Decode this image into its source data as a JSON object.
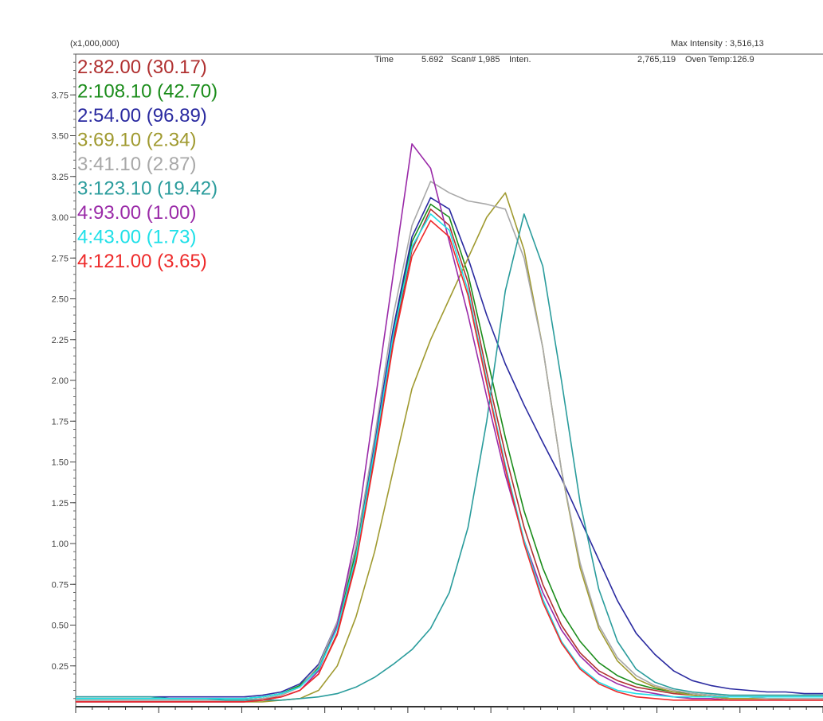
{
  "header": {
    "multiplier": "(x1,000,000)",
    "max_intensity": "Max Intensity : 3,516,13",
    "time_label": "Time",
    "time_value": "5.692",
    "scan_label": "Scan#",
    "scan_value": "1,985",
    "inten_label": "Inten.",
    "inten_value": "2,765,119",
    "oven_temp": "Oven Temp:126.9"
  },
  "chart_data": {
    "type": "line",
    "ylim": [
      0,
      4.0
    ],
    "y_ticks": [
      {
        "v": 0.25,
        "label": "0.25"
      },
      {
        "v": 0.5,
        "label": "0.50"
      },
      {
        "v": 0.75,
        "label": "0.75"
      },
      {
        "v": 1.0,
        "label": "1.00"
      },
      {
        "v": 1.25,
        "label": "1.25"
      },
      {
        "v": 1.5,
        "label": "1.50"
      },
      {
        "v": 1.75,
        "label": "1.75"
      },
      {
        "v": 2.0,
        "label": "2.00"
      },
      {
        "v": 2.25,
        "label": "2.25"
      },
      {
        "v": 2.5,
        "label": "2.50"
      },
      {
        "v": 2.75,
        "label": "2.75"
      },
      {
        "v": 3.0,
        "label": "3.00"
      },
      {
        "v": 3.25,
        "label": "3.25"
      },
      {
        "v": 3.5,
        "label": "3.50"
      },
      {
        "v": 3.75,
        "label": "3.75"
      }
    ],
    "x": [
      0,
      1,
      2,
      3,
      4,
      5,
      6,
      7,
      8,
      9,
      10,
      11,
      12,
      13,
      14,
      15,
      16,
      17,
      18,
      19,
      20,
      21,
      22,
      23,
      24,
      25,
      26,
      27,
      28,
      29,
      30,
      31,
      32,
      33,
      34,
      35,
      36,
      37,
      38,
      39,
      40
    ],
    "series": [
      {
        "name": "2:82.00 (30.17)",
        "color": "#b03030",
        "values": [
          0.04,
          0.04,
          0.04,
          0.04,
          0.04,
          0.04,
          0.04,
          0.04,
          0.04,
          0.04,
          0.05,
          0.06,
          0.1,
          0.2,
          0.45,
          0.9,
          1.55,
          2.25,
          2.8,
          3.05,
          2.95,
          2.6,
          2.05,
          1.55,
          1.1,
          0.75,
          0.5,
          0.33,
          0.22,
          0.16,
          0.12,
          0.1,
          0.08,
          0.07,
          0.06,
          0.05,
          0.05,
          0.05,
          0.05,
          0.05,
          0.05
        ]
      },
      {
        "name": "2:108.10 (42.70)",
        "color": "#1a8c1a",
        "values": [
          0.05,
          0.05,
          0.05,
          0.05,
          0.05,
          0.05,
          0.05,
          0.05,
          0.05,
          0.05,
          0.06,
          0.08,
          0.13,
          0.24,
          0.5,
          0.95,
          1.6,
          2.3,
          2.85,
          3.08,
          3.0,
          2.65,
          2.15,
          1.65,
          1.2,
          0.85,
          0.58,
          0.4,
          0.27,
          0.19,
          0.14,
          0.11,
          0.09,
          0.08,
          0.07,
          0.06,
          0.06,
          0.06,
          0.06,
          0.06,
          0.06
        ]
      },
      {
        "name": "2:54.00 (96.89)",
        "color": "#2a2aa0",
        "values": [
          0.06,
          0.06,
          0.06,
          0.06,
          0.06,
          0.06,
          0.06,
          0.06,
          0.06,
          0.06,
          0.07,
          0.09,
          0.14,
          0.26,
          0.52,
          0.98,
          1.62,
          2.32,
          2.88,
          3.12,
          3.05,
          2.75,
          2.4,
          2.1,
          1.85,
          1.62,
          1.4,
          1.15,
          0.9,
          0.65,
          0.45,
          0.32,
          0.22,
          0.16,
          0.13,
          0.11,
          0.1,
          0.09,
          0.09,
          0.08,
          0.08
        ]
      },
      {
        "name": "3:69.10 (2.34)",
        "color": "#a09a30",
        "values": [
          0.03,
          0.03,
          0.03,
          0.03,
          0.03,
          0.03,
          0.03,
          0.03,
          0.03,
          0.03,
          0.03,
          0.04,
          0.05,
          0.1,
          0.25,
          0.55,
          0.95,
          1.45,
          1.95,
          2.25,
          2.5,
          2.75,
          3.0,
          3.15,
          2.8,
          2.2,
          1.45,
          0.85,
          0.48,
          0.28,
          0.17,
          0.12,
          0.09,
          0.07,
          0.06,
          0.05,
          0.05,
          0.05,
          0.04,
          0.04,
          0.04
        ]
      },
      {
        "name": "3:41.10 (2.87)",
        "color": "#a8a8a8",
        "values": [
          0.04,
          0.04,
          0.04,
          0.04,
          0.04,
          0.04,
          0.04,
          0.04,
          0.04,
          0.04,
          0.05,
          0.07,
          0.12,
          0.25,
          0.52,
          0.98,
          1.65,
          2.4,
          2.95,
          3.22,
          3.15,
          3.1,
          3.08,
          3.05,
          2.75,
          2.2,
          1.45,
          0.88,
          0.5,
          0.3,
          0.19,
          0.13,
          0.1,
          0.08,
          0.07,
          0.06,
          0.06,
          0.05,
          0.05,
          0.05,
          0.05
        ]
      },
      {
        "name": "3:123.10 (19.42)",
        "color": "#2a9c9c",
        "values": [
          0.06,
          0.06,
          0.06,
          0.06,
          0.06,
          0.05,
          0.05,
          0.05,
          0.04,
          0.04,
          0.04,
          0.04,
          0.05,
          0.06,
          0.08,
          0.12,
          0.18,
          0.26,
          0.35,
          0.48,
          0.7,
          1.1,
          1.75,
          2.55,
          3.02,
          2.7,
          2.0,
          1.25,
          0.72,
          0.4,
          0.23,
          0.15,
          0.11,
          0.09,
          0.08,
          0.07,
          0.07,
          0.07,
          0.07,
          0.07,
          0.07
        ]
      },
      {
        "name": "4:93.00 (1.00)",
        "color": "#9a2aa8",
        "values": [
          0.03,
          0.03,
          0.03,
          0.03,
          0.03,
          0.03,
          0.03,
          0.03,
          0.03,
          0.03,
          0.04,
          0.06,
          0.1,
          0.22,
          0.5,
          1.05,
          1.85,
          2.65,
          3.45,
          3.3,
          2.85,
          2.4,
          1.9,
          1.42,
          1.02,
          0.7,
          0.47,
          0.31,
          0.2,
          0.14,
          0.1,
          0.08,
          0.06,
          0.05,
          0.05,
          0.04,
          0.04,
          0.04,
          0.04,
          0.04,
          0.04
        ]
      },
      {
        "name": "4:43.00 (1.73)",
        "color": "#20e0e8",
        "values": [
          0.05,
          0.05,
          0.05,
          0.05,
          0.05,
          0.05,
          0.05,
          0.05,
          0.05,
          0.05,
          0.06,
          0.08,
          0.12,
          0.23,
          0.48,
          0.92,
          1.58,
          2.28,
          2.82,
          3.02,
          2.92,
          2.55,
          2.0,
          1.48,
          1.02,
          0.66,
          0.4,
          0.24,
          0.15,
          0.1,
          0.08,
          0.07,
          0.06,
          0.06,
          0.06,
          0.06,
          0.06,
          0.06,
          0.06,
          0.06,
          0.06
        ]
      },
      {
        "name": "4:121.00 (3.65)",
        "color": "#ee2a2a",
        "values": [
          0.03,
          0.03,
          0.03,
          0.03,
          0.03,
          0.03,
          0.03,
          0.03,
          0.03,
          0.03,
          0.04,
          0.06,
          0.1,
          0.2,
          0.44,
          0.88,
          1.52,
          2.22,
          2.76,
          2.98,
          2.88,
          2.52,
          1.98,
          1.46,
          1.0,
          0.64,
          0.39,
          0.23,
          0.14,
          0.09,
          0.06,
          0.05,
          0.04,
          0.04,
          0.04,
          0.04,
          0.04,
          0.04,
          0.04,
          0.04,
          0.04
        ]
      }
    ]
  }
}
